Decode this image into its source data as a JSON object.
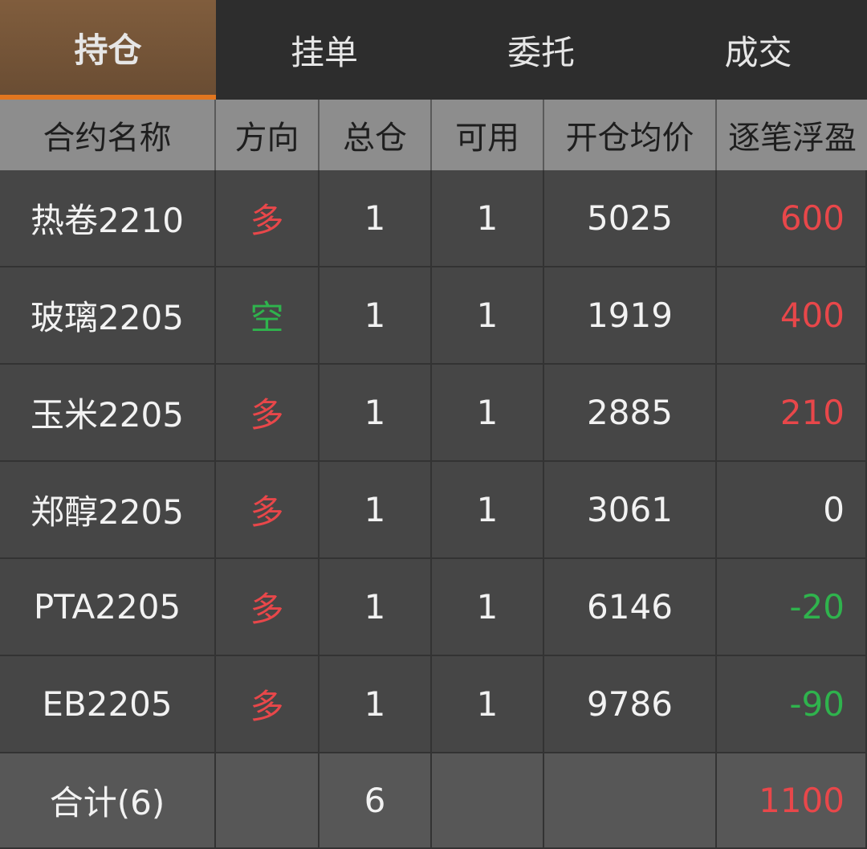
{
  "tabs": [
    "持仓",
    "挂单",
    "委托",
    "成交"
  ],
  "active_tab": 0,
  "table": {
    "headers": [
      "合约名称",
      "方向",
      "总仓",
      "可用",
      "开仓均价",
      "逐笔浮盈"
    ],
    "rows": [
      {
        "name": "热卷2210",
        "direction": "多",
        "direction_color": "#e8474a",
        "total": 1,
        "available": 1,
        "avg_price": 5025,
        "pnl": 600,
        "pnl_color": "#e8474a"
      },
      {
        "name": "玻璃2205",
        "direction": "空",
        "direction_color": "#2fb34d",
        "total": 1,
        "available": 1,
        "avg_price": 1919,
        "pnl": 400,
        "pnl_color": "#e8474a"
      },
      {
        "name": "玉米2205",
        "direction": "多",
        "direction_color": "#e8474a",
        "total": 1,
        "available": 1,
        "avg_price": 2885,
        "pnl": 210,
        "pnl_color": "#e8474a"
      },
      {
        "name": "郑醇2205",
        "direction": "多",
        "direction_color": "#e8474a",
        "total": 1,
        "available": 1,
        "avg_price": 3061,
        "pnl": 0,
        "pnl_color": "#f2f2f2"
      },
      {
        "name": "PTA2205",
        "direction": "多",
        "direction_color": "#e8474a",
        "total": 1,
        "available": 1,
        "avg_price": 6146,
        "pnl": -20,
        "pnl_color": "#2fb34d"
      },
      {
        "name": "EB2205",
        "direction": "多",
        "direction_color": "#e8474a",
        "total": 1,
        "available": 1,
        "avg_price": 9786,
        "pnl": -90,
        "pnl_color": "#2fb34d"
      }
    ],
    "footer": {
      "label": "合计(6)",
      "total": 6,
      "pnl": 1100,
      "pnl_color": "#e8474a"
    }
  }
}
